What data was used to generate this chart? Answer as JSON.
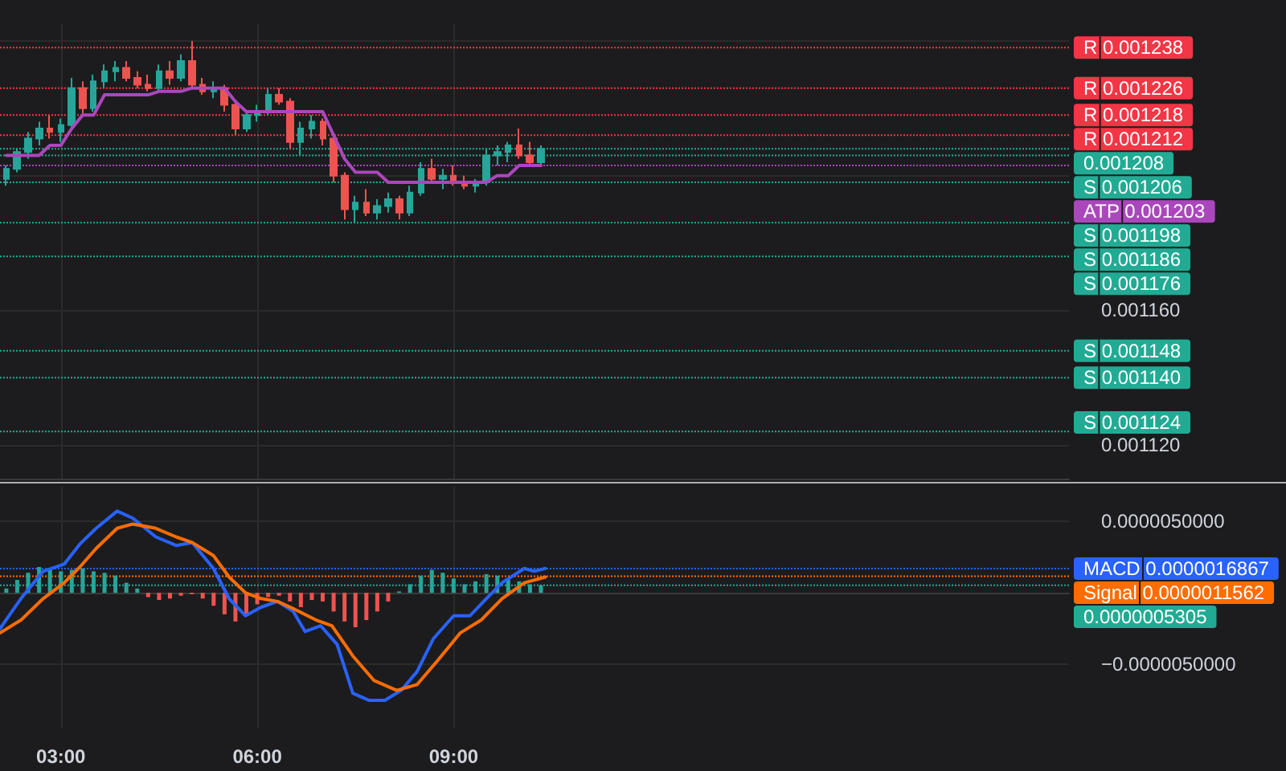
{
  "chart_data": [
    {
      "type": "candlestick",
      "x": [
        2.1667,
        2.3333,
        2.5,
        2.6667,
        2.8333,
        3,
        3.1667,
        3.3333,
        3.5,
        3.6667,
        3.8333,
        4,
        4.1667,
        4.3333,
        4.5,
        4.6667,
        4.8333,
        5,
        5.1667,
        5.3333,
        5.5,
        5.6667,
        5.8333,
        6,
        6.1667,
        6.3333,
        6.5,
        6.6667,
        6.8333,
        7,
        7.1667,
        7.3333,
        7.5,
        7.6667,
        7.8333,
        8,
        8.1667,
        8.3333,
        8.5,
        8.6667,
        8.8333,
        9,
        9.1667,
        9.3333,
        9.5,
        9.6667,
        9.8333,
        10,
        10.1667,
        10.3333
      ],
      "ohlc": [
        [
          0.001199,
          0.001203,
          0.001197,
          0.001202
        ],
        [
          0.001202,
          0.001208,
          0.001201,
          0.001207
        ],
        [
          0.001207,
          0.001213,
          0.001205,
          0.001211
        ],
        [
          0.001211,
          0.001216,
          0.001209,
          0.001214
        ],
        [
          0.001214,
          0.001218,
          0.001211,
          0.001213
        ],
        [
          0.001213,
          0.001217,
          0.00121,
          0.001215
        ],
        [
          0.001215,
          0.001229,
          0.001214,
          0.001226
        ],
        [
          0.001226,
          0.001228,
          0.001218,
          0.00122
        ],
        [
          0.00122,
          0.00123,
          0.001219,
          0.001228
        ],
        [
          0.001228,
          0.001233,
          0.001226,
          0.001231
        ],
        [
          0.001231,
          0.001234,
          0.001228,
          0.001232
        ],
        [
          0.001232,
          0.001234,
          0.001228,
          0.001229
        ],
        [
          0.001229,
          0.001231,
          0.001226,
          0.001227
        ],
        [
          0.001227,
          0.00123,
          0.001225,
          0.001226
        ],
        [
          0.001226,
          0.001233,
          0.001225,
          0.001231
        ],
        [
          0.001231,
          0.001234,
          0.001227,
          0.001229
        ],
        [
          0.001229,
          0.001236,
          0.001228,
          0.001234
        ],
        [
          0.001234,
          0.00124,
          0.001226,
          0.001227
        ],
        [
          0.001227,
          0.001229,
          0.001224,
          0.001225
        ],
        [
          0.001225,
          0.001228,
          0.001223,
          0.001226
        ],
        [
          0.001226,
          0.001227,
          0.001219,
          0.001221
        ],
        [
          0.001221,
          0.001222,
          0.001212,
          0.001214
        ],
        [
          0.001214,
          0.001219,
          0.001213,
          0.001218
        ],
        [
          0.001218,
          0.001221,
          0.001216,
          0.001219
        ],
        [
          0.001219,
          0.001226,
          0.001218,
          0.001224
        ],
        [
          0.001224,
          0.001226,
          0.001221,
          0.001222
        ],
        [
          0.001222,
          0.001223,
          0.001208,
          0.00121
        ],
        [
          0.00121,
          0.001216,
          0.001206,
          0.001214
        ],
        [
          0.001214,
          0.001218,
          0.001211,
          0.001216
        ],
        [
          0.001216,
          0.001217,
          0.001209,
          0.001211
        ],
        [
          0.001211,
          0.001212,
          0.001198,
          0.0012
        ],
        [
          0.0012,
          0.001201,
          0.001187,
          0.00119
        ],
        [
          0.00119,
          0.001194,
          0.001186,
          0.001192
        ],
        [
          0.001192,
          0.001196,
          0.001188,
          0.001189
        ],
        [
          0.001189,
          0.001193,
          0.001187,
          0.001191
        ],
        [
          0.001191,
          0.001195,
          0.001189,
          0.001193
        ],
        [
          0.001193,
          0.001194,
          0.001187,
          0.001189
        ],
        [
          0.001189,
          0.001197,
          0.001188,
          0.001195
        ],
        [
          0.001195,
          0.001204,
          0.001194,
          0.001202
        ],
        [
          0.001202,
          0.001205,
          0.001198,
          0.001199
        ],
        [
          0.001199,
          0.001202,
          0.001196,
          0.0012
        ],
        [
          0.0012,
          0.001203,
          0.001197,
          0.001198
        ],
        [
          0.001198,
          0.0012,
          0.001196,
          0.001197
        ],
        [
          0.001197,
          0.001199,
          0.001195,
          0.001198
        ],
        [
          0.001198,
          0.001208,
          0.001197,
          0.001206
        ],
        [
          0.001206,
          0.001209,
          0.001203,
          0.001207
        ],
        [
          0.001207,
          0.00121,
          0.001204,
          0.001209
        ],
        [
          0.001209,
          0.001214,
          0.001205,
          0.001206
        ],
        [
          0.001206,
          0.00121,
          0.001203,
          0.001204
        ],
        [
          0.001204,
          0.001209,
          0.001203,
          0.001208
        ]
      ],
      "colors": [
        "#26a69a",
        "#26a69a",
        "#26a69a",
        "#26a69a",
        "#ef5350",
        "#26a69a",
        "#26a69a",
        "#ef5350",
        "#26a69a",
        "#26a69a",
        "#26a69a",
        "#ef5350",
        "#ef5350",
        "#ef5350",
        "#26a69a",
        "#ef5350",
        "#26a69a",
        "#ef5350",
        "#ef5350",
        "#26a69a",
        "#ef5350",
        "#ef5350",
        "#26a69a",
        "#26a69a",
        "#26a69a",
        "#ef5350",
        "#ef5350",
        "#26a69a",
        "#26a69a",
        "#ef5350",
        "#ef5350",
        "#ef5350",
        "#26a69a",
        "#ef5350",
        "#26a69a",
        "#26a69a",
        "#ef5350",
        "#26a69a",
        "#26a69a",
        "#ef5350",
        "#26a69a",
        "#ef5350",
        "#ef5350",
        "#26a69a",
        "#26a69a",
        "#26a69a",
        "#26a69a",
        "#ef5350",
        "#ef5350",
        "#26a69a"
      ],
      "series": [
        {
          "type": "line",
          "color": "#ab47bc",
          "values": [
            0.001206,
            0.001206,
            0.001206,
            0.001206,
            0.001209,
            0.001209,
            0.001214,
            0.001218,
            0.001218,
            0.001224,
            0.001224,
            0.001224,
            0.001224,
            0.001224,
            0.001225,
            0.001225,
            0.001225,
            0.001226,
            0.001226,
            0.001226,
            0.001226,
            0.001222,
            0.001219,
            0.001219,
            0.001219,
            0.001219,
            0.001219,
            0.001219,
            0.001219,
            0.001219,
            0.001212,
            0.001205,
            0.001201,
            0.001201,
            0.001201,
            0.001198,
            0.001198,
            0.001198,
            0.001198,
            0.001198,
            0.001198,
            0.001198,
            0.001198,
            0.001198,
            0.001198,
            0.0012,
            0.0012,
            0.001203,
            0.001203,
            0.001203
          ]
        }
      ],
      "xlim": [
        2.07,
        18.4
      ],
      "xticks": [
        {
          "value": 3,
          "label": null
        },
        {
          "value": 6,
          "label": null
        },
        {
          "value": 9,
          "label": null
        }
      ],
      "ylim": [
        0.00111,
        0.001245
      ],
      "yticks": [
        {
          "value": 0.00112,
          "label": "0.001120"
        },
        {
          "value": 0.00116,
          "label": "0.001160"
        },
        {
          "value": 0.0012,
          "label": null
        },
        {
          "value": 0.00124,
          "label": null
        }
      ],
      "tick_labels": "y",
      "grid": true,
      "ref_lines": [
        {
          "axis": "y",
          "value": 0.001238,
          "label": "R 0.001238",
          "color": "#f23645",
          "line_style": "dotted"
        },
        {
          "axis": "y",
          "value": 0.001226,
          "label": "R 0.001226",
          "color": "#f23645",
          "line_style": "dotted"
        },
        {
          "axis": "y",
          "value": 0.001218,
          "label": "R 0.001218",
          "color": "#f23645",
          "line_style": "dotted"
        },
        {
          "axis": "y",
          "value": 0.001212,
          "label": "R 0.001212",
          "color": "#f23645",
          "line_style": "dotted"
        },
        {
          "axis": "y",
          "value": 0.001208,
          "label": "0.001208",
          "color": "#22ab94",
          "line_style": "dotted"
        },
        {
          "axis": "y",
          "value": 0.001206,
          "label": "S 0.001206",
          "color": "#22ab94",
          "line_style": "dotted"
        },
        {
          "axis": "y",
          "value": 0.001203,
          "label": "ATP 0.001203",
          "color": "#ab47bc",
          "line_style": "dotted"
        },
        {
          "axis": "y",
          "value": 0.001198,
          "label": "S 0.001198",
          "color": "#22ab94",
          "line_style": "dotted"
        },
        {
          "axis": "y",
          "value": 0.001186,
          "label": "S 0.001186",
          "color": "#22ab94",
          "line_style": "dotted"
        },
        {
          "axis": "y",
          "value": 0.001176,
          "label": "S 0.001176",
          "color": "#22ab94",
          "line_style": "dotted"
        },
        {
          "axis": "y",
          "value": 0.001148,
          "label": "S 0.001148",
          "color": "#22ab94",
          "line_style": "dotted"
        },
        {
          "axis": "y",
          "value": 0.00114,
          "label": "S 0.001140",
          "color": "#22ab94",
          "line_style": "dotted"
        },
        {
          "axis": "y",
          "value": 0.001124,
          "label": "S 0.001124",
          "color": "#22ab94",
          "line_style": "dotted"
        }
      ]
    },
    {
      "type": "line",
      "series": [
        {
          "type": "bar",
          "x": [
            2.1667,
            2.3333,
            2.5,
            2.6667,
            2.8333,
            3,
            3.1667,
            3.3333,
            3.5,
            3.6667,
            3.8333,
            4,
            4.1667,
            4.3333,
            4.5,
            4.6667,
            4.8333,
            5,
            5.1667,
            5.3333,
            5.5,
            5.6667,
            5.8333,
            6,
            6.1667,
            6.3333,
            6.5,
            6.6667,
            6.8333,
            7,
            7.1667,
            7.3333,
            7.5,
            7.6667,
            7.8333,
            8,
            8.1667,
            8.3333,
            8.5,
            8.6667,
            8.8333,
            9,
            9.1667,
            9.3333,
            9.5,
            9.6667,
            9.8333,
            10,
            10.1667,
            10.3333
          ],
          "values": [
            3e-07,
            9e-07,
            1.4e-06,
            1.8e-06,
            1.7e-06,
            1.5e-06,
            1.6e-06,
            1.7e-06,
            1.5e-06,
            1.4e-06,
            1.2e-06,
            7e-07,
            3e-07,
            -3e-07,
            -5e-07,
            -4e-07,
            -2e-07,
            -1e-07,
            -4e-07,
            -9e-07,
            -1.5e-06,
            -2e-06,
            -1.6e-06,
            -8e-07,
            -3e-07,
            -2e-07,
            -6e-07,
            -1e-06,
            -5e-07,
            -6e-07,
            -1.3e-06,
            -2e-06,
            -2.4e-06,
            -1.9e-06,
            -1.3e-06,
            -6e-07,
            1e-07,
            6e-07,
            1.2e-06,
            1.6e-06,
            1.4e-06,
            1e-06,
            6e-07,
            8e-07,
            1.3e-06,
            1.2e-06,
            1e-06,
            8e-07,
            6e-07,
            5.305e-07
          ],
          "colors": [
            "#26a69a",
            "#26a69a",
            "#26a69a",
            "#26a69a",
            "#26a69a",
            "#26a69a",
            "#26a69a",
            "#26a69a",
            "#26a69a",
            "#26a69a",
            "#26a69a",
            "#26a69a",
            "#26a69a",
            "#ef5350",
            "#ef5350",
            "#ef5350",
            "#ef5350",
            "#ef5350",
            "#ef5350",
            "#ef5350",
            "#ef5350",
            "#ef5350",
            "#ef5350",
            "#ef5350",
            "#ef5350",
            "#ef5350",
            "#ef5350",
            "#ef5350",
            "#ef5350",
            "#ef5350",
            "#ef5350",
            "#ef5350",
            "#ef5350",
            "#ef5350",
            "#ef5350",
            "#ef5350",
            "#26a69a",
            "#26a69a",
            "#26a69a",
            "#26a69a",
            "#26a69a",
            "#26a69a",
            "#26a69a",
            "#26a69a",
            "#26a69a",
            "#26a69a",
            "#26a69a",
            "#26a69a",
            "#26a69a",
            "#26a69a"
          ]
        },
        {
          "color": "#2962ff",
          "x": [
            2.07,
            2.39,
            2.73,
            3.05,
            3.29,
            3.54,
            3.86,
            4.1,
            4.45,
            4.76,
            5.01,
            5.33,
            5.57,
            5.82,
            6.06,
            6.31,
            6.55,
            6.73,
            6.97,
            7.22,
            7.46,
            7.71,
            7.95,
            8.2,
            8.44,
            8.69,
            9,
            9.25,
            9.5,
            9.74,
            10.08,
            10.23,
            10.4
          ],
          "values": [
            -2.5e-06,
            -4e-07,
            1.5e-06,
            2e-06,
            3.4e-06,
            4.5e-06,
            5.7e-06,
            5.2e-06,
            3.9e-06,
            3.3e-06,
            3.5e-06,
            1.7e-06,
            -4e-07,
            -1.6e-06,
            -1e-06,
            -6e-07,
            -1.3e-06,
            -2.7e-06,
            -2.3e-06,
            -3.6e-06,
            -7e-06,
            -7.5e-06,
            -7.5e-06,
            -6.8e-06,
            -5.5e-06,
            -3.2e-06,
            -1.6e-06,
            -1.6e-06,
            -4e-07,
            7e-07,
            1.7e-06,
            1.5e-06,
            1.7e-06
          ]
        },
        {
          "color": "#ff6d00",
          "x": [
            2.07,
            2.39,
            2.73,
            3.05,
            3.29,
            3.54,
            3.86,
            4.1,
            4.45,
            4.76,
            5.01,
            5.33,
            5.57,
            5.82,
            6.06,
            6.31,
            6.55,
            6.9,
            7.14,
            7.46,
            7.78,
            8.13,
            8.44,
            8.76,
            9.1,
            9.42,
            9.74,
            10.08,
            10.4
          ],
          "values": [
            -2.8e-06,
            -1.9e-06,
            -4e-07,
            7e-07,
            1.8e-06,
            3.1e-06,
            4.5e-06,
            4.8e-06,
            4.5e-06,
            3.9e-06,
            3.5e-06,
            2.6e-06,
            1.1e-06,
            0,
            -4e-07,
            -6e-07,
            -1.1e-06,
            -1.9e-06,
            -2.3e-06,
            -4.4e-06,
            -6.1e-06,
            -6.8e-06,
            -6.4e-06,
            -4.7e-06,
            -2.8e-06,
            -1.9e-06,
            -4e-07,
            7e-07,
            1.1e-06
          ]
        }
      ],
      "xlim": [
        2.07,
        18.4
      ],
      "xticks": [
        {
          "value": 3,
          "label": "03:00"
        },
        {
          "value": 6,
          "label": "06:00"
        },
        {
          "value": 9,
          "label": "09:00"
        }
      ],
      "ylim": [
        -9.4e-06,
        7.4e-06
      ],
      "yticks": [
        {
          "value": -5e-06,
          "label": "−0.0000050000"
        },
        {
          "value": 5e-06,
          "label": "0.0000050000"
        }
      ],
      "grid": true,
      "ref_lines": [
        {
          "axis": "y",
          "value": 1.6867e-06,
          "label": "MACD 0.0000016867",
          "color": "#2962ff",
          "line_style": "dotted"
        },
        {
          "axis": "y",
          "value": 1.1562e-06,
          "label": "Signal 0.0000011562",
          "color": "#ff6d00",
          "line_style": "dotted"
        },
        {
          "axis": "y",
          "value": 5.305e-07,
          "label": "0.0000005305",
          "color": "#22ab94",
          "line_style": "dotted"
        }
      ]
    }
  ]
}
